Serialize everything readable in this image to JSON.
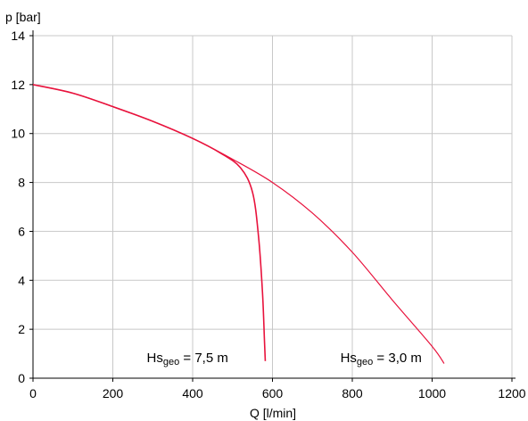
{
  "chart_data": {
    "type": "line",
    "title": "",
    "xlabel": "Q [l/min]",
    "ylabel": "p [bar]",
    "xlim": [
      0,
      1200
    ],
    "ylim": [
      0,
      14
    ],
    "x_ticks": [
      "0",
      "200",
      "400",
      "600",
      "800",
      "1000",
      "1200"
    ],
    "y_ticks": [
      "0",
      "2",
      "4",
      "6",
      "8",
      "10",
      "12",
      "14"
    ],
    "grid": true,
    "series": [
      {
        "color": "#e8123c",
        "x": [
          0,
          100,
          200,
          300,
          400,
          500,
          600,
          700,
          800,
          900,
          1000,
          1030
        ],
        "y": [
          12.0,
          11.65,
          11.1,
          10.5,
          9.8,
          8.95,
          8.0,
          6.75,
          5.15,
          3.2,
          1.3,
          0.6
        ]
      },
      {
        "color": "#e8123c",
        "x": [
          0,
          100,
          200,
          300,
          400,
          470,
          520,
          550,
          565,
          575,
          580,
          582
        ],
        "y": [
          12.0,
          11.65,
          11.1,
          10.5,
          9.8,
          9.2,
          8.6,
          7.6,
          5.8,
          3.5,
          1.5,
          0.7
        ]
      }
    ],
    "annotations": [
      {
        "main": "Hs",
        "sub": "geo",
        "rest": " = 7,5 m",
        "x": 285,
        "y": 0.65
      },
      {
        "main": "Hs",
        "sub": "geo",
        "rest": " = 3,0 m",
        "x": 770,
        "y": 0.65
      }
    ]
  }
}
